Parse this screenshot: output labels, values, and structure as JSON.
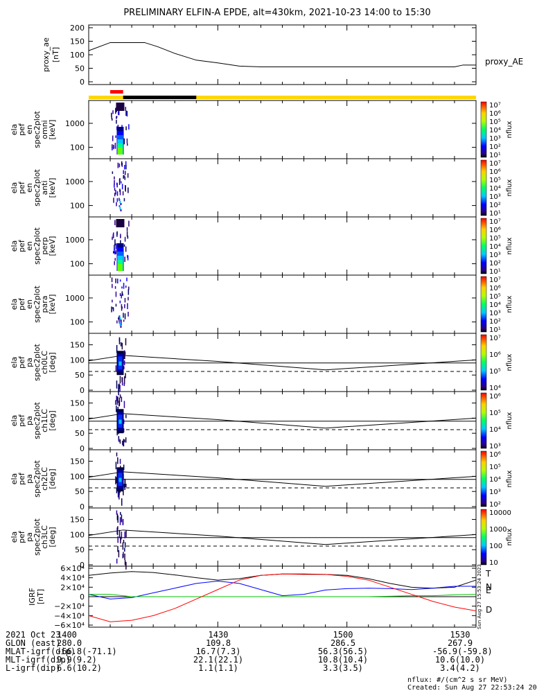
{
  "title": "PRELIMINARY ELFIN-A EPDE, alt=430km, 2021-10-23 14:00 to 15:30",
  "colors": {
    "ae": "#000000",
    "red": "#ff0000",
    "black": "#000000",
    "yellow": "#ffd700",
    "igrf_T": "#000000",
    "igrf_N": "#0000ff",
    "igrf_E": "#00c000",
    "igrf_D": "#ff0000"
  },
  "panels": {
    "ae": {
      "ylabel_lines": [
        "proxy_ae",
        "[nT]"
      ],
      "series_label": "proxy_AE",
      "ticks": [
        "200",
        "150",
        "100",
        "50",
        "0"
      ]
    },
    "omni": {
      "ylabel_lines": [
        "ela",
        "pef",
        "en",
        "spec2plot",
        "omni",
        "[keV]"
      ],
      "ticks": [
        "1000",
        "100"
      ],
      "cb_label": "nflux",
      "cb_ticks": [
        "10⁷",
        "10⁶",
        "10⁵",
        "10⁴",
        "10³",
        "10²",
        "10¹"
      ]
    },
    "anti": {
      "ylabel_lines": [
        "ela",
        "pef",
        "en",
        "spec2plot",
        "anti",
        "[keV]"
      ],
      "ticks": [
        "1000",
        "100"
      ],
      "cb_label": "nflux",
      "cb_ticks": [
        "10⁷",
        "10⁶",
        "10⁵",
        "10⁴",
        "10³",
        "10²",
        "10¹"
      ]
    },
    "perp": {
      "ylabel_lines": [
        "ela",
        "pef",
        "en",
        "spec2plot",
        "perp",
        "[keV]"
      ],
      "ticks": [
        "1000",
        "100"
      ],
      "cb_label": "nflux",
      "cb_ticks": [
        "10⁷",
        "10⁶",
        "10⁵",
        "10⁴",
        "10³",
        "10²",
        "10¹"
      ]
    },
    "para": {
      "ylabel_lines": [
        "ela",
        "pef",
        "en",
        "spec2plot",
        "para",
        "[keV]"
      ],
      "ticks": [
        "1000",
        "100"
      ],
      "cb_label": "nflux",
      "cb_ticks": [
        "10⁷",
        "10⁶",
        "10⁵",
        "10⁴",
        "10³",
        "10²",
        "10¹"
      ]
    },
    "ch0": {
      "ylabel_lines": [
        "ela",
        "pef",
        "pa",
        "spec2plot",
        "ch0LC",
        "[deg]"
      ],
      "ticks": [
        "150",
        "100",
        "50",
        "0"
      ],
      "cb_label": "nflux",
      "cb_ticks": [
        "10⁷",
        "10⁶",
        "10⁵",
        "10⁴"
      ]
    },
    "ch1": {
      "ylabel_lines": [
        "ela",
        "pef",
        "pa",
        "spec2plot",
        "ch1LC",
        "[deg]"
      ],
      "ticks": [
        "150",
        "100",
        "50",
        "0"
      ],
      "cb_label": "nflux",
      "cb_ticks": [
        "10⁶",
        "10⁵",
        "10⁴",
        "10³"
      ]
    },
    "ch2": {
      "ylabel_lines": [
        "ela",
        "pef",
        "pa",
        "spec2plot",
        "ch2LC",
        "[deg]"
      ],
      "ticks": [
        "150",
        "100",
        "50",
        "0"
      ],
      "cb_label": "nflux",
      "cb_ticks": [
        "10⁶",
        "10⁵",
        "10⁴",
        "10³",
        "10²"
      ]
    },
    "ch3": {
      "ylabel_lines": [
        "ela",
        "pef",
        "pa",
        "spec2plot",
        "ch3LC",
        "[deg]"
      ],
      "ticks": [
        "150",
        "100",
        "50",
        "0"
      ],
      "cb_label": "nflux",
      "cb_ticks": [
        "10000",
        "1000",
        "100",
        "10"
      ]
    },
    "igrf": {
      "ylabel_lines": [
        "IGRF",
        "[nT]"
      ],
      "ticks": [
        "6×10⁴",
        "4×10⁴",
        "2×10⁴",
        "0",
        "−2×10⁴",
        "−4×10⁴",
        "−6×10⁴"
      ],
      "legend": [
        "T",
        "N",
        "E",
        "D"
      ],
      "stamp": "Sun Aug 27 15:53:24 2023"
    }
  },
  "footer": {
    "rows": [
      [
        "2021 Oct 23",
        "1400",
        "1430",
        "1500",
        "1530"
      ],
      [
        "GLON (east)",
        "280.0",
        "109.8",
        "286.5",
        "267.9"
      ],
      [
        "MLAT-igrf(dip)",
        "-66.8(-71.1)",
        "16.7(7.3)",
        "56.3(56.5)",
        "-56.9(-59.8)"
      ],
      [
        "MLT-igrf(dip)",
        "9.9(9.2)",
        "22.1(22.1)",
        "10.8(10.4)",
        "10.6(10.0)"
      ],
      [
        "L-igrf(dip)",
        "6.6(10.2)",
        "1.1(1.1)",
        "3.3(3.5)",
        "3.4(4.2)"
      ]
    ],
    "units_note": "nflux: #/(cm^2 s sr MeV)",
    "created": "Created: Sun Aug 27 22:53:24 2023"
  },
  "chart_data": [
    {
      "type": "line",
      "name": "proxy_ae",
      "x_unit": "UT",
      "x": [
        "14:00",
        "14:05",
        "14:10",
        "14:13",
        "14:16",
        "14:20",
        "14:25",
        "14:30",
        "14:35",
        "14:40",
        "15:00",
        "15:25",
        "15:27",
        "15:30"
      ],
      "values": [
        115,
        145,
        145,
        145,
        130,
        105,
        80,
        70,
        58,
        55,
        55,
        55,
        62,
        62
      ],
      "ylim": [
        0,
        200
      ]
    },
    {
      "type": "line",
      "name": "orbit_bar",
      "segments": [
        {
          "color": "red",
          "x": [
            "14:05",
            "14:08"
          ]
        },
        {
          "color": "black",
          "x": [
            "14:08",
            "14:25"
          ]
        },
        {
          "color": "yellow",
          "x": [
            "14:00",
            "15:30"
          ]
        }
      ]
    },
    {
      "type": "heatmap",
      "name": "omni",
      "ylim_log_keV": [
        50,
        6000
      ],
      "zlog": [
        1,
        7
      ],
      "event_x": [
        "14:06",
        "14:08"
      ]
    },
    {
      "type": "heatmap",
      "name": "anti",
      "ylim_log_keV": [
        50,
        6000
      ],
      "zlog": [
        1,
        7
      ],
      "event_x": [
        "14:06",
        "14:08"
      ]
    },
    {
      "type": "heatmap",
      "name": "perp",
      "ylim_log_keV": [
        50,
        6000
      ],
      "zlog": [
        1,
        7
      ],
      "event_x": [
        "14:06",
        "14:08"
      ]
    },
    {
      "type": "heatmap",
      "name": "para",
      "ylim_log_keV": [
        50,
        6000
      ],
      "zlog": [
        1,
        7
      ],
      "event_x": [
        "14:06",
        "14:08"
      ]
    },
    {
      "type": "line",
      "name": "pitch_angle_lines",
      "x": [
        "14:00",
        "14:08",
        "14:30",
        "14:55",
        "15:30"
      ],
      "solid": [
        97,
        115,
        95,
        67,
        100
      ],
      "dashed": [
        62,
        62,
        62,
        62,
        62
      ],
      "ylim": [
        0,
        180
      ]
    },
    {
      "type": "line",
      "name": "igrf",
      "x": [
        "14:00",
        "14:05",
        "14:10",
        "14:15",
        "14:20",
        "14:25",
        "14:30",
        "14:35",
        "14:40",
        "14:45",
        "14:50",
        "14:55",
        "15:00",
        "15:05",
        "15:10",
        "15:15",
        "15:20",
        "15:25",
        "15:30"
      ],
      "series": [
        {
          "name": "T",
          "values": [
            45000,
            50000,
            53000,
            51000,
            46000,
            40000,
            35000,
            38000,
            45000,
            48000,
            48000,
            47000,
            45000,
            38000,
            28000,
            20000,
            18000,
            20000,
            35000
          ]
        },
        {
          "name": "N",
          "values": [
            5000,
            -5000,
            -2000,
            8000,
            18000,
            28000,
            33000,
            28000,
            15000,
            2000,
            5000,
            14000,
            17000,
            18000,
            17000,
            15000,
            18000,
            22000,
            22000
          ]
        },
        {
          "name": "E",
          "values": [
            5000,
            5000,
            0,
            0,
            0,
            0,
            0,
            0,
            0,
            0,
            0,
            0,
            0,
            0,
            1000,
            2000,
            2000,
            4000,
            5000
          ]
        },
        {
          "name": "D",
          "values": [
            -40000,
            -53000,
            -50000,
            -40000,
            -25000,
            -5000,
            15000,
            35000,
            45000,
            48000,
            47000,
            47000,
            43000,
            35000,
            20000,
            5000,
            -10000,
            -22000,
            -30000
          ]
        }
      ],
      "ylim": [
        -60000,
        60000
      ]
    }
  ]
}
